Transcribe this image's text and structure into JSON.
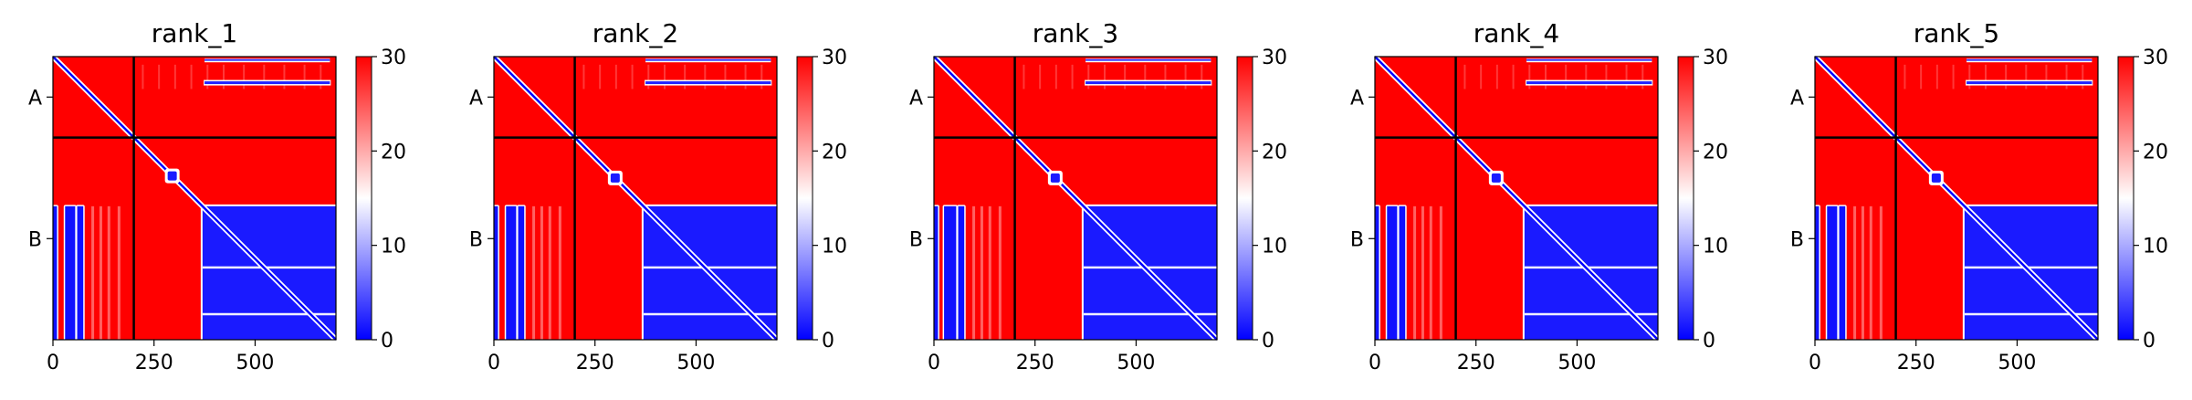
{
  "chart_data": [
    {
      "type": "heatmap",
      "title": "rank_1",
      "xticks": [
        0,
        250,
        500
      ],
      "xtick_labels": [
        "0",
        "250",
        "500"
      ],
      "ytick_labels": [
        "A",
        "B"
      ],
      "chain_boundary": 200,
      "chain_A_length": 200,
      "total_length": 700,
      "colorbar": {
        "min": 0,
        "max": 30,
        "ticks": [
          0,
          10,
          20,
          30
        ],
        "tick_labels": [
          "0",
          "10",
          "20",
          "30"
        ],
        "colors": [
          "#0000ff",
          "#ffffff",
          "#ff0000"
        ]
      },
      "b_blue_bands": [
        [
          0,
          10
        ],
        [
          30,
          55
        ],
        [
          60,
          75
        ]
      ],
      "b_block_start": 370,
      "diag_blob_center": 295
    },
    {
      "type": "heatmap",
      "title": "rank_2",
      "xticks": [
        0,
        250,
        500
      ],
      "xtick_labels": [
        "0",
        "250",
        "500"
      ],
      "ytick_labels": [
        "A",
        "B"
      ],
      "chain_boundary": 200,
      "chain_A_length": 200,
      "total_length": 700,
      "colorbar": {
        "min": 0,
        "max": 30,
        "ticks": [
          0,
          10,
          20,
          30
        ],
        "tick_labels": [
          "0",
          "10",
          "20",
          "30"
        ],
        "colors": [
          "#0000ff",
          "#ffffff",
          "#ff0000"
        ]
      },
      "b_blue_bands": [
        [
          0,
          10
        ],
        [
          30,
          55
        ],
        [
          60,
          75
        ]
      ],
      "b_block_start": 370,
      "diag_blob_center": 300
    },
    {
      "type": "heatmap",
      "title": "rank_3",
      "xticks": [
        0,
        250,
        500
      ],
      "xtick_labels": [
        "0",
        "250",
        "500"
      ],
      "ytick_labels": [
        "A",
        "B"
      ],
      "chain_boundary": 200,
      "chain_A_length": 200,
      "total_length": 700,
      "colorbar": {
        "min": 0,
        "max": 30,
        "ticks": [
          0,
          10,
          20,
          30
        ],
        "tick_labels": [
          "0",
          "10",
          "20",
          "30"
        ],
        "colors": [
          "#0000ff",
          "#ffffff",
          "#ff0000"
        ]
      },
      "b_blue_bands": [
        [
          0,
          10
        ],
        [
          25,
          55
        ],
        [
          60,
          75
        ]
      ],
      "b_block_start": 370,
      "diag_blob_center": 300
    },
    {
      "type": "heatmap",
      "title": "rank_4",
      "xticks": [
        0,
        250,
        500
      ],
      "xtick_labels": [
        "0",
        "250",
        "500"
      ],
      "ytick_labels": [
        "A",
        "B"
      ],
      "chain_boundary": 200,
      "chain_A_length": 200,
      "total_length": 700,
      "colorbar": {
        "min": 0,
        "max": 30,
        "ticks": [
          0,
          10,
          20,
          30
        ],
        "tick_labels": [
          "0",
          "10",
          "20",
          "30"
        ],
        "colors": [
          "#0000ff",
          "#ffffff",
          "#ff0000"
        ]
      },
      "b_blue_bands": [
        [
          0,
          10
        ],
        [
          30,
          55
        ],
        [
          60,
          75
        ]
      ],
      "b_block_start": 370,
      "diag_blob_center": 300
    },
    {
      "type": "heatmap",
      "title": "rank_5",
      "xticks": [
        0,
        250,
        500
      ],
      "xtick_labels": [
        "0",
        "250",
        "500"
      ],
      "ytick_labels": [
        "A",
        "B"
      ],
      "chain_boundary": 200,
      "chain_A_length": 200,
      "total_length": 700,
      "colorbar": {
        "min": 0,
        "max": 30,
        "ticks": [
          0,
          10,
          20,
          30
        ],
        "tick_labels": [
          "0",
          "10",
          "20",
          "30"
        ],
        "colors": [
          "#0000ff",
          "#ffffff",
          "#ff0000"
        ]
      },
      "b_blue_bands": [
        [
          0,
          10
        ],
        [
          30,
          55
        ],
        [
          60,
          75
        ]
      ],
      "b_block_start": 370,
      "diag_blob_center": 300
    }
  ]
}
